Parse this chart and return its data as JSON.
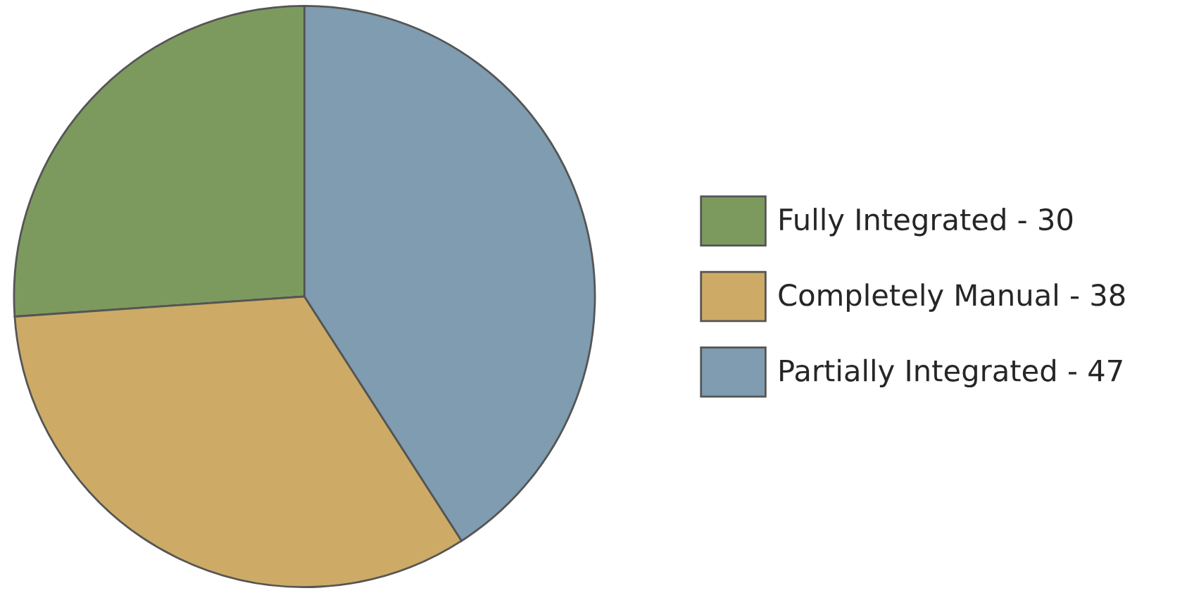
{
  "chart_data": {
    "type": "pie",
    "categories": [
      "Fully Integrated - 30",
      "Completely Manual - 38",
      "Partially Integrated - 47"
    ],
    "values": [
      26.1,
      33.0,
      40.9
    ],
    "colors": [
      "#7d9a5e",
      "#cdab66",
      "#7f9cb0"
    ],
    "legend": "right"
  }
}
